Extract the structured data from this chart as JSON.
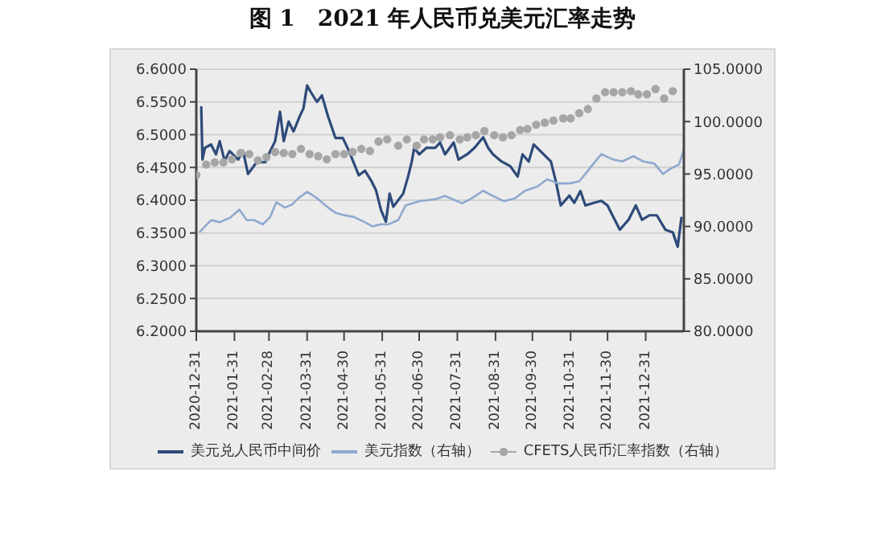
{
  "chart_data": {
    "type": "line",
    "title": "图 1　2021 年人民币兑美元汇率走势",
    "xlim": [
      "2020-12-31",
      "2022-01-31"
    ],
    "xticks": [
      "2020-12-31",
      "2021-01-31",
      "2021-02-28",
      "2021-03-31",
      "2021-04-30",
      "2021-05-31",
      "2021-06-30",
      "2021-07-31",
      "2021-08-31",
      "2021-09-30",
      "2021-10-31",
      "2021-11-30",
      "2021-12-31"
    ],
    "ylim": [
      6.2,
      6.6
    ],
    "yticks": [
      {
        "value": 6.2,
        "label": "6.2000"
      },
      {
        "value": 6.25,
        "label": "6.2500"
      },
      {
        "value": 6.3,
        "label": "6.3000"
      },
      {
        "value": 6.35,
        "label": "6.3500"
      },
      {
        "value": 6.4,
        "label": "6.4000"
      },
      {
        "value": 6.45,
        "label": "6.4500"
      },
      {
        "value": 6.5,
        "label": "6.5000"
      },
      {
        "value": 6.55,
        "label": "6.5500"
      },
      {
        "value": 6.6,
        "label": "6.6000"
      }
    ],
    "y2lim": [
      80,
      105
    ],
    "y2ticks": [
      {
        "value": 80,
        "label": "80.0000"
      },
      {
        "value": 85,
        "label": "85.0000"
      },
      {
        "value": 90,
        "label": "90.0000"
      },
      {
        "value": 95,
        "label": "95.0000"
      },
      {
        "value": 100,
        "label": "100.0000"
      },
      {
        "value": 105,
        "label": "105.0000"
      }
    ],
    "grid": "y",
    "legend": "bottom",
    "series": [
      {
        "name": "美元兑人民币中间价",
        "color": "#2e4a7a",
        "x": [
          "2021-01-04",
          "2021-01-05",
          "2021-01-07",
          "2021-01-12",
          "2021-01-16",
          "2021-01-19",
          "2021-01-23",
          "2021-01-27",
          "2021-02-03",
          "2021-02-07",
          "2021-02-11",
          "2021-02-18",
          "2021-02-25",
          "2021-03-01",
          "2021-03-05",
          "2021-03-09",
          "2021-03-12",
          "2021-03-16",
          "2021-03-20",
          "2021-03-25",
          "2021-03-28",
          "2021-03-31",
          "2021-04-03",
          "2021-04-08",
          "2021-04-12",
          "2021-04-17",
          "2021-04-23",
          "2021-04-29",
          "2021-05-04",
          "2021-05-12",
          "2021-05-17",
          "2021-05-22",
          "2021-05-26",
          "2021-05-30",
          "2021-06-03",
          "2021-06-06",
          "2021-06-09",
          "2021-06-17",
          "2021-06-21",
          "2021-06-24",
          "2021-06-26",
          "2021-06-30",
          "2021-07-06",
          "2021-07-13",
          "2021-07-17",
          "2021-07-21",
          "2021-07-28",
          "2021-08-01",
          "2021-08-08",
          "2021-08-14",
          "2021-08-21",
          "2021-08-25",
          "2021-08-29",
          "2021-09-05",
          "2021-09-12",
          "2021-09-18",
          "2021-09-22",
          "2021-09-27",
          "2021-10-01",
          "2021-10-15",
          "2021-10-19",
          "2021-10-23",
          "2021-10-30",
          "2021-11-03",
          "2021-11-08",
          "2021-11-12",
          "2021-11-19",
          "2021-11-25",
          "2021-11-30",
          "2021-12-04",
          "2021-12-10",
          "2021-12-17",
          "2021-12-23",
          "2021-12-28",
          "2022-01-03",
          "2022-01-09",
          "2022-01-16",
          "2022-01-22",
          "2022-01-26",
          "2022-01-29"
        ],
        "values": [
          6.542,
          6.462,
          6.48,
          6.485,
          6.47,
          6.49,
          6.46,
          6.475,
          6.462,
          6.475,
          6.44,
          6.458,
          6.458,
          6.475,
          6.49,
          6.535,
          6.49,
          6.52,
          6.505,
          6.528,
          6.54,
          6.575,
          6.565,
          6.55,
          6.56,
          6.528,
          6.495,
          6.495,
          6.475,
          6.438,
          6.445,
          6.43,
          6.415,
          6.385,
          6.367,
          6.41,
          6.39,
          6.41,
          6.436,
          6.459,
          6.48,
          6.47,
          6.48,
          6.48,
          6.488,
          6.47,
          6.488,
          6.462,
          6.47,
          6.48,
          6.496,
          6.48,
          6.47,
          6.459,
          6.452,
          6.436,
          6.47,
          6.459,
          6.485,
          6.459,
          6.429,
          6.392,
          6.407,
          6.396,
          6.414,
          6.392,
          6.396,
          6.399,
          6.392,
          6.377,
          6.355,
          6.37,
          6.392,
          6.37,
          6.377,
          6.377,
          6.355,
          6.351,
          6.329,
          6.373
        ]
      },
      {
        "name": "美元指数（右轴）",
        "axis": "y2",
        "color": "#8ea9cf",
        "x": [
          "2021-01-03",
          "2021-01-12",
          "2021-01-19",
          "2021-01-27",
          "2021-02-04",
          "2021-02-10",
          "2021-02-16",
          "2021-02-23",
          "2021-03-01",
          "2021-03-06",
          "2021-03-13",
          "2021-03-19",
          "2021-03-24",
          "2021-03-31",
          "2021-04-08",
          "2021-04-17",
          "2021-04-23",
          "2021-04-29",
          "2021-05-08",
          "2021-05-17",
          "2021-05-23",
          "2021-05-30",
          "2021-06-05",
          "2021-06-13",
          "2021-06-19",
          "2021-06-30",
          "2021-07-13",
          "2021-07-21",
          "2021-08-04",
          "2021-08-12",
          "2021-08-21",
          "2021-08-29",
          "2021-09-07",
          "2021-09-16",
          "2021-09-24",
          "2021-10-04",
          "2021-10-12",
          "2021-10-21",
          "2021-10-30",
          "2021-11-07",
          "2021-11-12",
          "2021-11-18",
          "2021-11-25",
          "2021-12-04",
          "2021-12-12",
          "2021-12-21",
          "2021-12-29",
          "2022-01-07",
          "2022-01-14",
          "2022-01-20",
          "2022-01-27",
          "2022-01-31"
        ],
        "values": [
          89.5,
          90.6,
          90.4,
          90.8,
          91.6,
          90.6,
          90.6,
          90.2,
          90.9,
          92.3,
          91.8,
          92.1,
          92.7,
          93.3,
          92.7,
          91.8,
          91.3,
          91.1,
          90.9,
          90.4,
          90.0,
          90.2,
          90.2,
          90.6,
          92.0,
          92.4,
          92.6,
          92.9,
          92.2,
          92.7,
          93.4,
          92.9,
          92.4,
          92.7,
          93.4,
          93.8,
          94.5,
          94.1,
          94.1,
          94.3,
          95.0,
          95.9,
          96.9,
          96.4,
          96.2,
          96.7,
          96.2,
          96.0,
          95.0,
          95.5,
          95.9,
          97.3
        ]
      },
      {
        "name": "CFETS人民币汇率指数（右轴）",
        "type": "scatter",
        "marker": "circle",
        "axis": "y2",
        "color": "#a6a6a6",
        "x": [
          "2020-12-31",
          "2021-01-08",
          "2021-01-15",
          "2021-01-22",
          "2021-01-29",
          "2021-02-05",
          "2021-02-12",
          "2021-02-19",
          "2021-02-26",
          "2021-03-05",
          "2021-03-12",
          "2021-03-19",
          "2021-03-26",
          "2021-04-02",
          "2021-04-09",
          "2021-04-16",
          "2021-04-23",
          "2021-04-30",
          "2021-05-07",
          "2021-05-14",
          "2021-05-21",
          "2021-05-28",
          "2021-06-04",
          "2021-06-13",
          "2021-06-20",
          "2021-06-28",
          "2021-07-04",
          "2021-07-11",
          "2021-07-17",
          "2021-07-25",
          "2021-08-02",
          "2021-08-08",
          "2021-08-15",
          "2021-08-22",
          "2021-08-30",
          "2021-09-06",
          "2021-09-13",
          "2021-09-20",
          "2021-09-26",
          "2021-10-03",
          "2021-10-10",
          "2021-10-17",
          "2021-10-25",
          "2021-10-31",
          "2021-11-07",
          "2021-11-14",
          "2021-11-21",
          "2021-11-28",
          "2021-12-05",
          "2021-12-12",
          "2021-12-19",
          "2021-12-25",
          "2022-01-01",
          "2022-01-08",
          "2022-01-15",
          "2022-01-22"
        ],
        "values": [
          94.9,
          95.9,
          96.1,
          96.1,
          96.4,
          97.0,
          96.9,
          96.3,
          96.6,
          97.1,
          97.0,
          96.9,
          97.4,
          96.9,
          96.7,
          96.4,
          96.9,
          96.9,
          97.1,
          97.4,
          97.2,
          98.1,
          98.3,
          97.7,
          98.3,
          97.7,
          98.3,
          98.3,
          98.5,
          98.7,
          98.3,
          98.5,
          98.7,
          99.1,
          98.7,
          98.5,
          98.7,
          99.2,
          99.3,
          99.7,
          99.9,
          100.1,
          100.3,
          100.3,
          100.8,
          101.2,
          102.2,
          102.8,
          102.8,
          102.8,
          102.9,
          102.6,
          102.6,
          103.1,
          102.2,
          102.9
        ]
      }
    ]
  }
}
